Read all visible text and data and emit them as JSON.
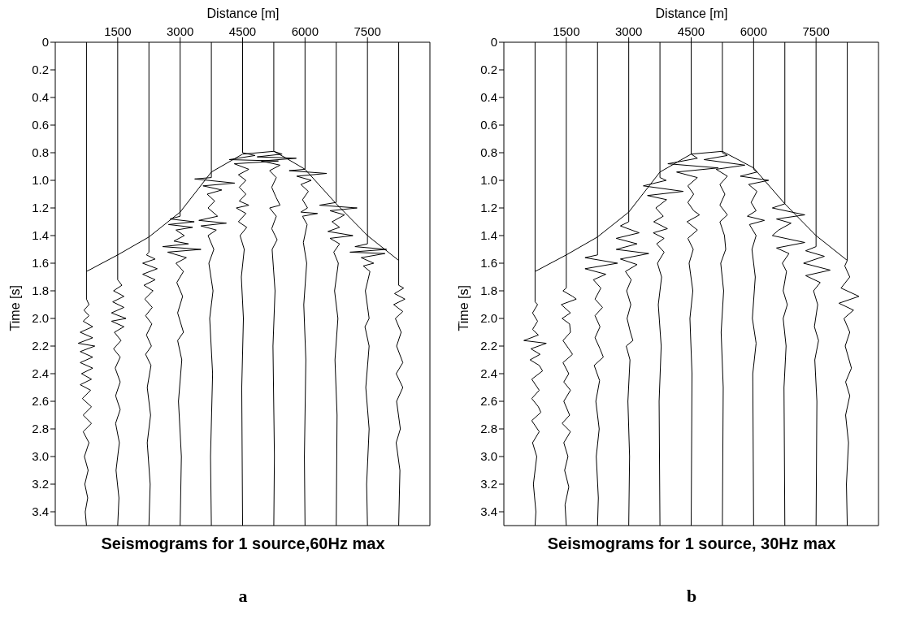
{
  "chart_data": [
    {
      "type": "line",
      "title": "Seismograms for 1 source,60Hz max",
      "xlabel": "Distance [m]",
      "ylabel": "Time [s]",
      "annotations": [
        "a"
      ],
      "xlim": [
        0,
        9000
      ],
      "xticks": [
        1500,
        3000,
        4500,
        6000,
        7500
      ],
      "ylim": [
        3.5,
        0
      ],
      "yticks": [
        0,
        0.2,
        0.4,
        0.6,
        0.8,
        {
          "value": 1,
          "label": "1.0"
        },
        1.2,
        1.4,
        1.6,
        1.8,
        {
          "value": 2,
          "label": "2.0"
        },
        2.2,
        2.4,
        2.6,
        2.8,
        {
          "value": 3,
          "label": "3.0"
        },
        3.2,
        3.4
      ],
      "grid": false,
      "legend": false,
      "marker": "none",
      "line_style": "solid",
      "series": [
        {
          "type": "line",
          "color": "#000000",
          "x": [
            750,
            1500,
            2250,
            3000,
            3750,
            4500,
            5250,
            5550,
            6000,
            6750,
            7500,
            8250
          ],
          "values": [
            1.66,
            1.54,
            1.41,
            1.23,
            0.94,
            0.81,
            0.79,
            0.84,
            0.92,
            1.17,
            1.4,
            1.58
          ]
        },
        {
          "type": "line",
          "color": "#000000",
          "x": [
            750,
            750,
            810,
            690,
            810,
            670,
            900,
            600,
            900,
            550,
            950,
            600,
            900,
            600,
            900,
            630,
            870,
            600,
            850,
            650,
            870,
            670,
            870,
            670,
            810,
            700,
            790,
            710,
            780,
            720,
            750
          ],
          "values": [
            0,
            1.86,
            1.9,
            1.94,
            1.98,
            2.02,
            2.06,
            2.1,
            2.14,
            2.18,
            2.2,
            2.24,
            2.28,
            2.32,
            2.36,
            2.4,
            2.44,
            2.48,
            2.52,
            2.58,
            2.64,
            2.7,
            2.76,
            2.82,
            2.9,
            3.0,
            3.1,
            3.2,
            3.3,
            3.4,
            3.5
          ]
        },
        {
          "type": "line",
          "color": "#000000",
          "x": [
            1500,
            1500,
            1600,
            1400,
            1650,
            1380,
            1650,
            1350,
            1700,
            1350,
            1650,
            1420,
            1580,
            1400,
            1560,
            1440,
            1560,
            1450,
            1560,
            1450,
            1540,
            1460,
            1530,
            1500
          ],
          "values": [
            0,
            1.72,
            1.76,
            1.8,
            1.84,
            1.88,
            1.92,
            1.96,
            2.0,
            2.02,
            2.06,
            2.1,
            2.16,
            2.22,
            2.28,
            2.36,
            2.46,
            2.56,
            2.66,
            2.76,
            2.9,
            3.1,
            3.3,
            3.5
          ]
        },
        {
          "type": "line",
          "color": "#000000",
          "x": [
            2250,
            2250,
            2190,
            2400,
            2100,
            2450,
            2100,
            2400,
            2130,
            2350,
            2150,
            2330,
            2170,
            2320,
            2190,
            2310,
            2170,
            2300,
            2210,
            2290,
            2210,
            2280,
            2250
          ],
          "values": [
            0,
            1.52,
            1.54,
            1.57,
            1.6,
            1.64,
            1.68,
            1.72,
            1.76,
            1.8,
            1.86,
            1.92,
            1.98,
            2.04,
            2.12,
            2.2,
            2.26,
            2.34,
            2.5,
            2.7,
            2.9,
            3.2,
            3.5
          ]
        },
        {
          "type": "line",
          "color": "#000000",
          "x": [
            3000,
            3000,
            2760,
            3340,
            2720,
            3300,
            2900,
            3100,
            2850,
            3200,
            2580,
            3500,
            2700,
            3150,
            2900,
            3080,
            2920,
            3060,
            2940,
            3080,
            2940,
            3040,
            2960,
            3030,
            3000
          ],
          "values": [
            0,
            1.26,
            1.28,
            1.3,
            1.32,
            1.34,
            1.36,
            1.4,
            1.44,
            1.46,
            1.48,
            1.5,
            1.52,
            1.56,
            1.6,
            1.66,
            1.74,
            1.84,
            1.96,
            2.1,
            2.16,
            2.3,
            2.6,
            3.0,
            3.5
          ]
        },
        {
          "type": "line",
          "color": "#000000",
          "x": [
            3750,
            3750,
            3350,
            4310,
            3550,
            4000,
            3650,
            3830,
            3670,
            3900,
            3450,
            4110,
            3500,
            3870,
            3670,
            3810,
            3690,
            3790,
            3710,
            3780,
            3730,
            3750
          ],
          "values": [
            0,
            0.98,
            0.99,
            1.02,
            1.04,
            1.07,
            1.1,
            1.15,
            1.2,
            1.26,
            1.29,
            1.31,
            1.33,
            1.36,
            1.4,
            1.5,
            1.6,
            1.8,
            2.0,
            2.4,
            3.0,
            3.5
          ]
        },
        {
          "type": "line",
          "color": "#000000",
          "x": [
            4500,
            4500,
            4800,
            4180,
            5360,
            4300,
            4650,
            4400,
            4580,
            4420,
            4580,
            4420,
            4650,
            4350,
            4580,
            4400,
            4600,
            4440,
            4540,
            4470,
            4520,
            4480,
            4500
          ],
          "values": [
            0,
            0.8,
            0.82,
            0.85,
            0.86,
            0.88,
            0.92,
            0.96,
            1.0,
            1.05,
            1.1,
            1.15,
            1.18,
            1.2,
            1.24,
            1.3,
            1.34,
            1.4,
            1.5,
            1.7,
            2.0,
            2.5,
            3.5
          ]
        },
        {
          "type": "line",
          "color": "#000000",
          "x": [
            5250,
            5250,
            5450,
            4850,
            5790,
            4950,
            5400,
            5150,
            5310,
            5200,
            5300,
            5400,
            5150,
            5310,
            5200,
            5330,
            5210,
            5280,
            5230,
            5265,
            5250
          ],
          "values": [
            0,
            0.79,
            0.81,
            0.83,
            0.84,
            0.86,
            0.89,
            0.93,
            0.98,
            1.05,
            1.12,
            1.18,
            1.2,
            1.26,
            1.35,
            1.43,
            1.5,
            1.8,
            2.2,
            3.0,
            3.5
          ]
        },
        {
          "type": "line",
          "color": "#000000",
          "x": [
            6000,
            6000,
            5620,
            6520,
            5800,
            6150,
            5900,
            6080,
            5940,
            6060,
            5900,
            6300,
            5940,
            6050,
            5960,
            6040,
            5970,
            6020,
            5985,
            6000
          ],
          "values": [
            0,
            0.92,
            0.93,
            0.95,
            0.97,
            1.0,
            1.03,
            1.08,
            1.14,
            1.2,
            1.23,
            1.24,
            1.26,
            1.32,
            1.45,
            1.6,
            1.9,
            2.3,
            3.0,
            3.5
          ]
        },
        {
          "type": "line",
          "color": "#000000",
          "x": [
            6750,
            6750,
            6350,
            7250,
            6600,
            6950,
            6650,
            6830,
            6550,
            7150,
            6600,
            6830,
            6690,
            6800,
            6710,
            6790,
            6720,
            6770,
            6750
          ],
          "values": [
            0,
            1.16,
            1.18,
            1.2,
            1.22,
            1.25,
            1.3,
            1.34,
            1.37,
            1.4,
            1.42,
            1.46,
            1.52,
            1.6,
            1.8,
            2.0,
            2.3,
            2.7,
            3.5
          ]
        },
        {
          "type": "line",
          "color": "#000000",
          "x": [
            7500,
            7500,
            7200,
            7960,
            7080,
            7920,
            7350,
            7650,
            7400,
            7560,
            7450,
            7540,
            7440,
            7540,
            7460,
            7540,
            7480,
            7500
          ],
          "values": [
            0,
            1.46,
            1.48,
            1.5,
            1.52,
            1.53,
            1.56,
            1.6,
            1.62,
            1.66,
            1.8,
            2.0,
            2.06,
            2.2,
            2.5,
            2.8,
            3.2,
            3.5
          ]
        },
        {
          "type": "line",
          "color": "#000000",
          "x": [
            8250,
            8250,
            8370,
            8150,
            8400,
            8130,
            8350,
            8170,
            8310,
            8200,
            8350,
            8190,
            8350,
            8200,
            8290,
            8190,
            8280,
            8250
          ],
          "values": [
            0,
            1.76,
            1.78,
            1.82,
            1.86,
            1.9,
            1.95,
            2.0,
            2.1,
            2.2,
            2.32,
            2.4,
            2.5,
            2.6,
            2.8,
            2.9,
            3.1,
            3.5
          ]
        }
      ]
    },
    {
      "type": "line",
      "title": "Seismograms for 1 source, 30Hz max",
      "xlabel": "Distance [m]",
      "ylabel": "Time [s]",
      "annotations": [
        "b"
      ],
      "xlim": [
        0,
        9000
      ],
      "xticks": [
        1500,
        3000,
        4500,
        6000,
        7500
      ],
      "ylim": [
        3.5,
        0
      ],
      "yticks": [
        0,
        0.2,
        0.4,
        0.6,
        0.8,
        {
          "value": 1,
          "label": "1.0"
        },
        1.2,
        1.4,
        1.6,
        1.8,
        {
          "value": 2,
          "label": "2.0"
        },
        2.2,
        2.4,
        2.6,
        2.8,
        {
          "value": 3,
          "label": "3.0"
        },
        3.2,
        3.4
      ],
      "grid": false,
      "legend": false,
      "marker": "none",
      "line_style": "solid",
      "series": [
        {
          "type": "line",
          "color": "#000000",
          "x": [
            750,
            1500,
            2250,
            3000,
            3750,
            4500,
            5250,
            6000,
            6750,
            7500,
            8250
          ],
          "values": [
            1.66,
            1.54,
            1.41,
            1.23,
            0.94,
            0.81,
            0.79,
            0.91,
            1.17,
            1.4,
            1.58
          ]
        },
        {
          "type": "line",
          "color": "#000000",
          "x": [
            750,
            750,
            810,
            690,
            810,
            690,
            830,
            480,
            1020,
            650,
            870,
            630,
            850,
            930,
            670,
            850,
            670,
            830,
            890,
            670,
            850,
            690,
            790,
            710,
            770,
            750
          ],
          "values": [
            0,
            1.88,
            1.9,
            1.96,
            2.02,
            2.08,
            2.12,
            2.16,
            2.18,
            2.22,
            2.26,
            2.3,
            2.34,
            2.38,
            2.44,
            2.52,
            2.58,
            2.64,
            2.68,
            2.74,
            2.82,
            2.9,
            3.0,
            3.2,
            3.4,
            3.5
          ]
        },
        {
          "type": "line",
          "color": "#000000",
          "x": [
            1500,
            1500,
            1420,
            1650,
            1740,
            1380,
            1600,
            1400,
            1580,
            1600,
            1420,
            1560,
            1650,
            1420,
            1560,
            1440,
            1600,
            1440,
            1580,
            1400,
            1600,
            1440,
            1540,
            1460,
            1560,
            1470,
            1500
          ],
          "values": [
            0,
            1.78,
            1.8,
            1.84,
            1.86,
            1.9,
            1.96,
            2.0,
            2.04,
            2.1,
            2.16,
            2.22,
            2.26,
            2.32,
            2.4,
            2.46,
            2.52,
            2.6,
            2.7,
            2.76,
            2.82,
            2.9,
            3.0,
            3.1,
            3.22,
            3.35,
            3.5
          ]
        },
        {
          "type": "line",
          "color": "#000000",
          "x": [
            2250,
            2250,
            1950,
            2730,
            1950,
            2450,
            2150,
            2330,
            2190,
            2370,
            2190,
            2310,
            2190,
            2310,
            2390,
            2170,
            2300,
            2210,
            2290,
            2220,
            2270,
            2250
          ],
          "values": [
            0,
            1.54,
            1.56,
            1.6,
            1.64,
            1.68,
            1.72,
            1.78,
            1.86,
            1.92,
            1.98,
            2.06,
            2.14,
            2.22,
            2.28,
            2.34,
            2.45,
            2.6,
            2.8,
            3.0,
            3.3,
            3.5
          ]
        },
        {
          "type": "line",
          "color": "#000000",
          "x": [
            3000,
            3000,
            2800,
            3250,
            2700,
            3200,
            2700,
            3480,
            2800,
            3200,
            2920,
            3060,
            2950,
            3050,
            2960,
            3040,
            3100,
            2940,
            3030,
            2980,
            3020,
            3000
          ],
          "values": [
            0,
            1.3,
            1.33,
            1.38,
            1.42,
            1.46,
            1.5,
            1.53,
            1.57,
            1.61,
            1.66,
            1.72,
            1.8,
            1.9,
            2.0,
            2.1,
            2.16,
            2.2,
            2.3,
            2.6,
            3.0,
            3.5
          ]
        },
        {
          "type": "line",
          "color": "#000000",
          "x": [
            3750,
            3750,
            3900,
            3350,
            4310,
            3450,
            3910,
            3650,
            3830,
            3600,
            3930,
            3590,
            3850,
            3670,
            3850,
            3690,
            3790,
            3710,
            3780,
            3730,
            3750
          ],
          "values": [
            0,
            0.98,
            1.0,
            1.04,
            1.08,
            1.11,
            1.14,
            1.2,
            1.26,
            1.3,
            1.35,
            1.38,
            1.42,
            1.46,
            1.52,
            1.6,
            1.7,
            1.9,
            2.2,
            2.6,
            3.5
          ]
        },
        {
          "type": "line",
          "color": "#000000",
          "x": [
            4500,
            4500,
            4650,
            3940,
            5150,
            4150,
            4650,
            4420,
            4560,
            4420,
            4560,
            4700,
            4400,
            4650,
            4420,
            4550,
            4450,
            4540,
            4470,
            4520,
            4500
          ],
          "values": [
            0,
            0.81,
            0.84,
            0.88,
            0.91,
            0.94,
            0.98,
            1.04,
            1.1,
            1.16,
            1.22,
            1.25,
            1.3,
            1.36,
            1.42,
            1.5,
            1.6,
            1.8,
            2.0,
            2.4,
            3.5
          ]
        },
        {
          "type": "line",
          "color": "#000000",
          "x": [
            5250,
            5250,
            5370,
            4810,
            5790,
            5100,
            5370,
            5190,
            5310,
            5190,
            5370,
            5190,
            5300,
            5330,
            5210,
            5280,
            5220,
            5270,
            5250
          ],
          "values": [
            0,
            0.8,
            0.82,
            0.85,
            0.89,
            0.92,
            0.97,
            1.03,
            1.1,
            1.18,
            1.25,
            1.3,
            1.4,
            1.5,
            1.6,
            1.8,
            2.1,
            2.5,
            3.5
          ]
        },
        {
          "type": "line",
          "color": "#000000",
          "x": [
            6000,
            6000,
            6080,
            5680,
            6360,
            5880,
            6080,
            5940,
            6060,
            5850,
            6260,
            5900,
            6060,
            5960,
            6040,
            5970,
            6060,
            5980,
            6000
          ],
          "values": [
            0,
            0.92,
            0.94,
            0.97,
            1.0,
            1.03,
            1.08,
            1.16,
            1.22,
            1.26,
            1.29,
            1.32,
            1.4,
            1.5,
            1.7,
            2.0,
            2.18,
            2.4,
            3.5
          ]
        },
        {
          "type": "line",
          "color": "#000000",
          "x": [
            6750,
            6750,
            6450,
            7230,
            6550,
            6900,
            6600,
            6450,
            7230,
            6550,
            6850,
            6690,
            6790,
            6710,
            6810,
            6710,
            6780,
            6730,
            6750
          ],
          "values": [
            0,
            1.17,
            1.2,
            1.25,
            1.28,
            1.31,
            1.36,
            1.4,
            1.45,
            1.49,
            1.53,
            1.6,
            1.66,
            1.8,
            1.9,
            2.0,
            2.2,
            2.5,
            3.5
          ]
        },
        {
          "type": "line",
          "color": "#000000",
          "x": [
            7500,
            7500,
            7250,
            7700,
            7200,
            7840,
            7250,
            7600,
            7440,
            7540,
            7460,
            7560,
            7470,
            7520,
            7500
          ],
          "values": [
            0,
            1.48,
            1.51,
            1.55,
            1.6,
            1.65,
            1.69,
            1.74,
            1.8,
            1.9,
            2.06,
            2.16,
            2.3,
            2.6,
            3.5
          ]
        },
        {
          "type": "line",
          "color": "#000000",
          "x": [
            8250,
            8250,
            8190,
            8310,
            8100,
            8530,
            8050,
            8400,
            8170,
            8310,
            8200,
            8350,
            8210,
            8310,
            8210,
            8280,
            8230,
            8250
          ],
          "values": [
            0,
            1.58,
            1.62,
            1.7,
            1.78,
            1.84,
            1.89,
            1.94,
            2.0,
            2.1,
            2.2,
            2.36,
            2.46,
            2.56,
            2.7,
            2.9,
            3.2,
            3.5
          ]
        }
      ]
    }
  ]
}
